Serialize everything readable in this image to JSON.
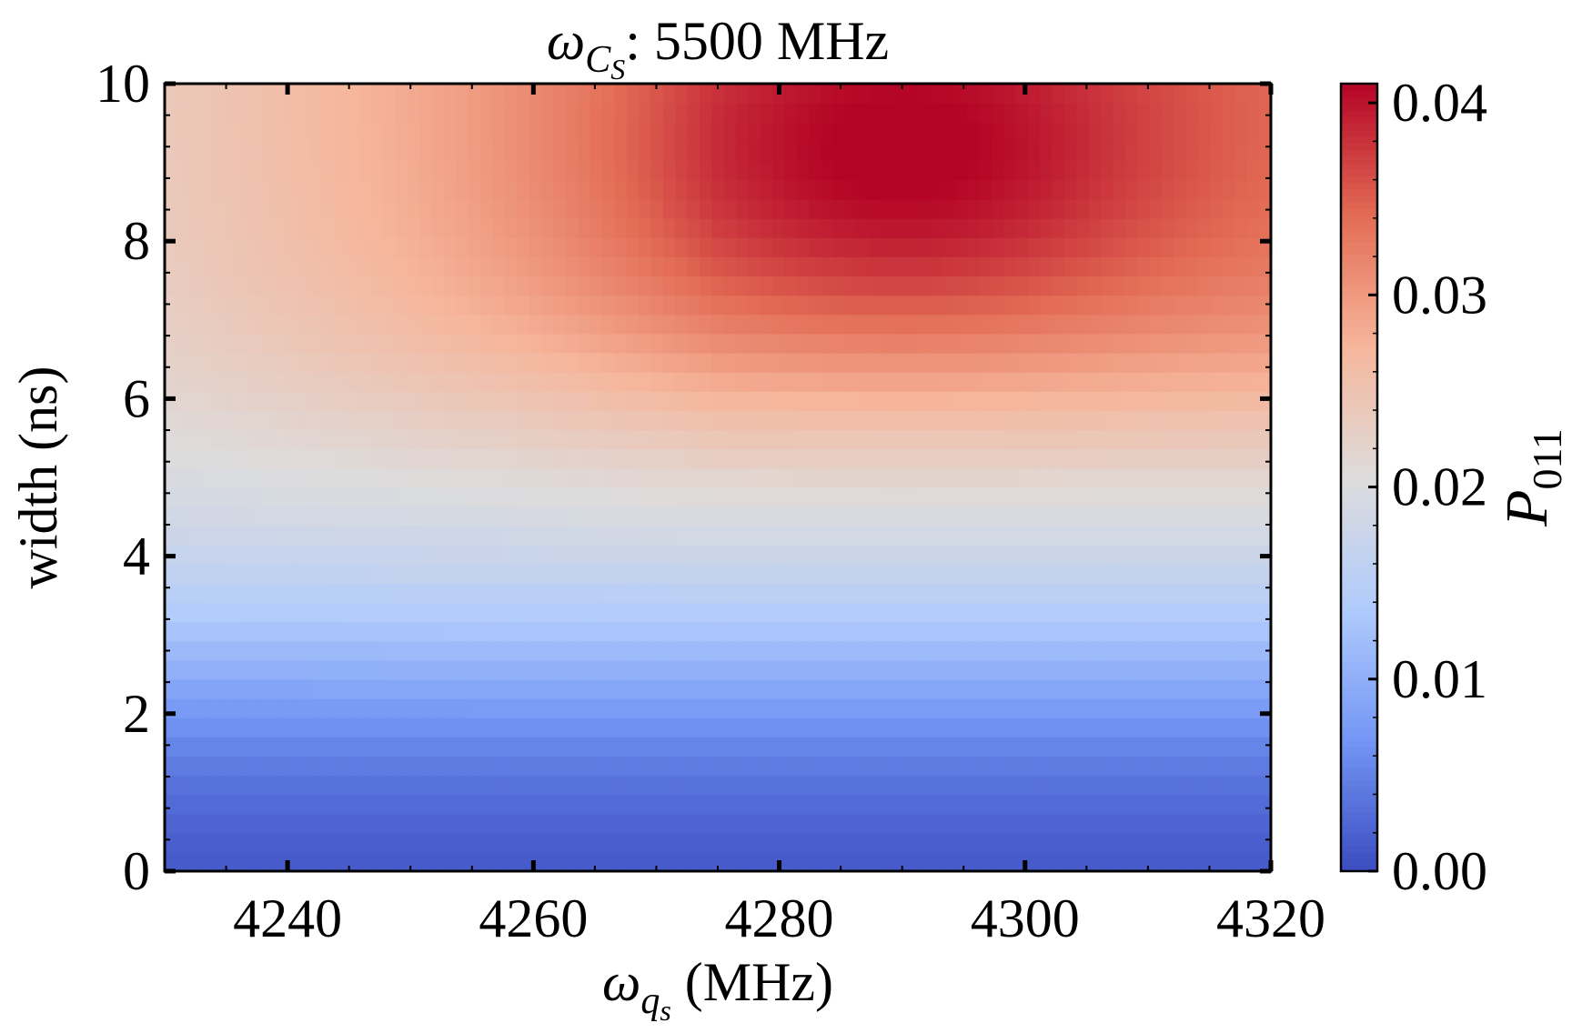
{
  "chart_data": {
    "type": "heatmap",
    "title": {
      "symbol": "ω",
      "subscript": "C",
      "subsubscript": "S",
      "text": ": 5500 MHz"
    },
    "xlabel": {
      "symbol": "ω",
      "subscript": "q",
      "subsubscript": "s",
      "text": " (MHz)"
    },
    "ylabel": "width (ns)",
    "colorbar_label": {
      "symbol": "P",
      "subscript": "011"
    },
    "x_range": [
      4230,
      4320
    ],
    "y_range": [
      0,
      10
    ],
    "x_ticks": [
      "4240",
      "4260",
      "4280",
      "4300",
      "4320"
    ],
    "x_tick_values": [
      4240,
      4260,
      4280,
      4300,
      4320
    ],
    "y_ticks": [
      "0",
      "2",
      "4",
      "6",
      "8",
      "10"
    ],
    "y_tick_values": [
      0,
      2,
      4,
      6,
      8,
      10
    ],
    "colorbar_range": [
      0.0,
      0.041
    ],
    "colorbar_ticks": [
      "0.00",
      "0.01",
      "0.02",
      "0.03",
      "0.04"
    ],
    "colorbar_tick_values": [
      0.0,
      0.01,
      0.02,
      0.03,
      0.04
    ],
    "colormap": "coolwarm",
    "colormap_stops": [
      "#3b4cc0",
      "#7396f5",
      "#b0cbfc",
      "#dddcdc",
      "#f6b69b",
      "#e36c55",
      "#b40426"
    ],
    "grid": false,
    "grid_resolution": {
      "nx": 91,
      "ny": 41
    },
    "peak": {
      "x": 4290,
      "y": 9.0,
      "value": 0.041
    },
    "values_description": "P011 rises from ~0.00 at width 0 to ~0.02 near width 5 ns across all frequencies; above ~5.5 ns it increases further, peaking at ~0.041 near 4290 MHz and 9 ns, while near 4230 MHz it stays ~0.02-0.025."
  }
}
